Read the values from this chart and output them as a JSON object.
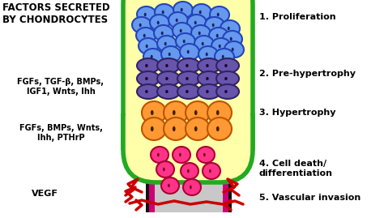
{
  "title_left": "FACTORS SECRETED\nBY CHONDROCYTES",
  "label1": "1. Proliferation",
  "label2": "2. Pre-hypertrophy",
  "label3": "3. Hypertrophy",
  "label4": "4. Cell death/\ndifferentiation",
  "label5": "5. Vascular invasion",
  "left_text1": "FGFs, TGF-β, BMPs,\nIGF1, Wnts, Ihh",
  "left_text2": "FGFs, BMPs, Wnts,\nIhh, PTHrP",
  "left_text3": "VEGF",
  "bg_color": "#ffffff",
  "yellow_zone": "#ffffaa",
  "green_border": "#22aa22",
  "blue_cell_fill": "#6699ee",
  "blue_cell_outline": "#2244bb",
  "purple_cell_fill": "#6655aa",
  "purple_cell_outline": "#332266",
  "orange_cell_fill": "#ff9933",
  "orange_cell_outline": "#bb5500",
  "pink_cell_fill": "#ff3388",
  "pink_cell_outline": "#aa0033",
  "gray_zone": "#c8c8c8",
  "magenta_stripe": "#cc0077",
  "red_vessel": "#cc0000",
  "black_stripe": "#111111"
}
